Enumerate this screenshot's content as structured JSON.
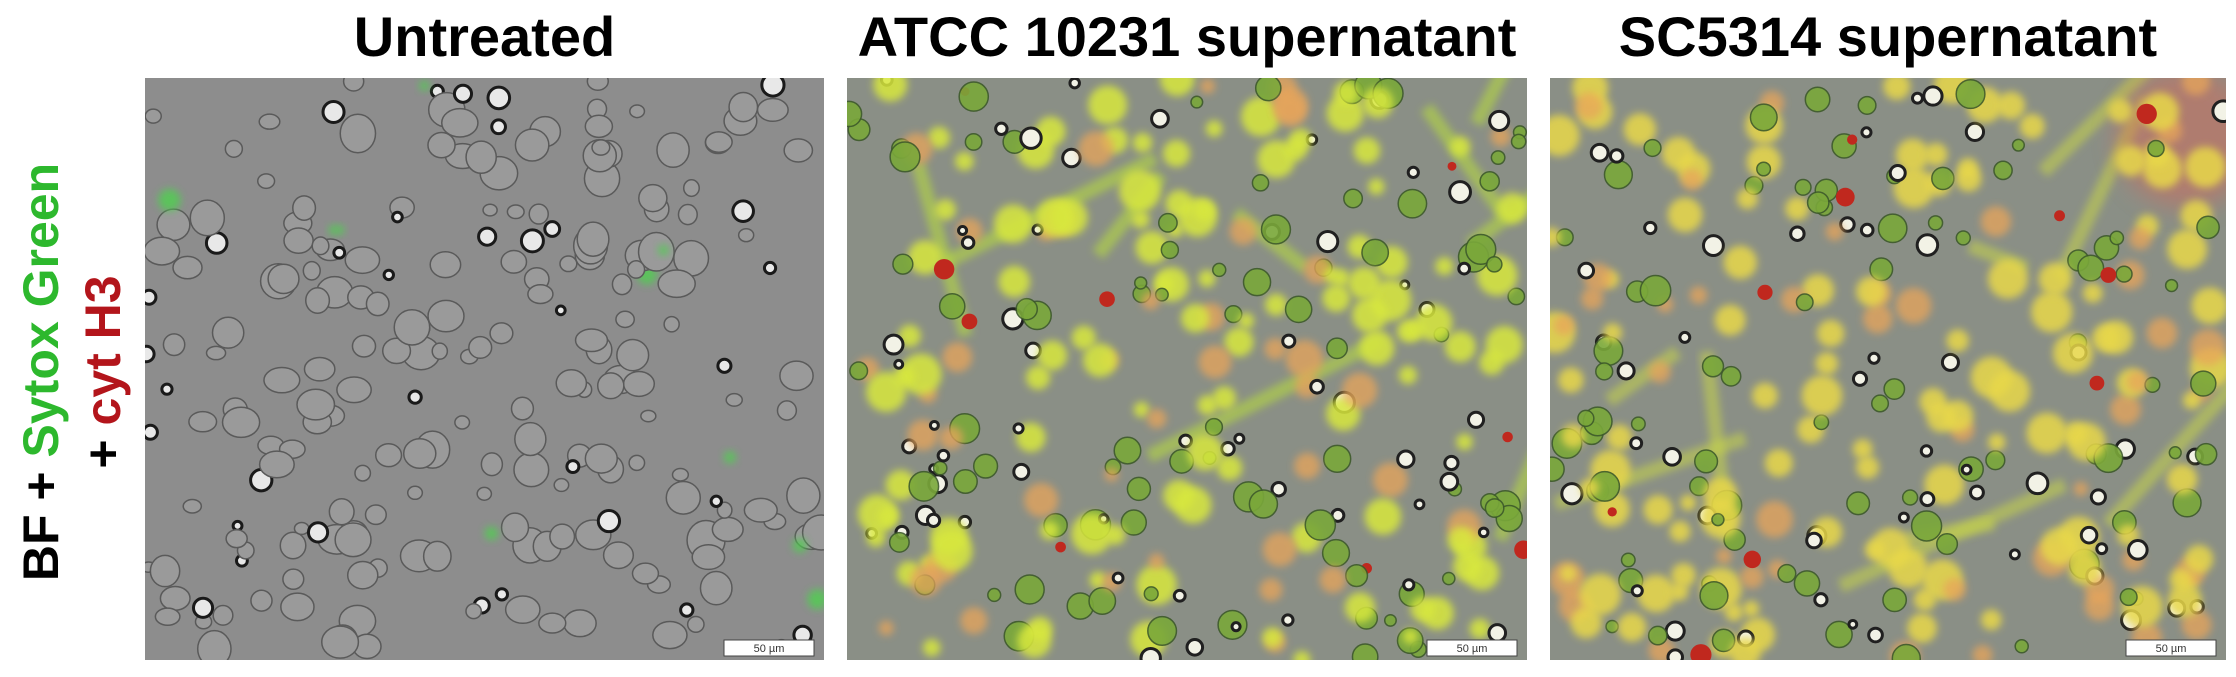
{
  "side_label": {
    "line1_part1": "BF +",
    "line1_part2": "Sytox Green",
    "line2_part1": "+",
    "line2_part2": "cyt H3"
  },
  "panels": [
    {
      "title": "Untreated",
      "scale_bar": "50 µm"
    },
    {
      "title": "ATCC 10231 supernatant",
      "scale_bar": "50 µm"
    },
    {
      "title": "SC5314 supernatant",
      "scale_bar": "50 µm"
    }
  ]
}
